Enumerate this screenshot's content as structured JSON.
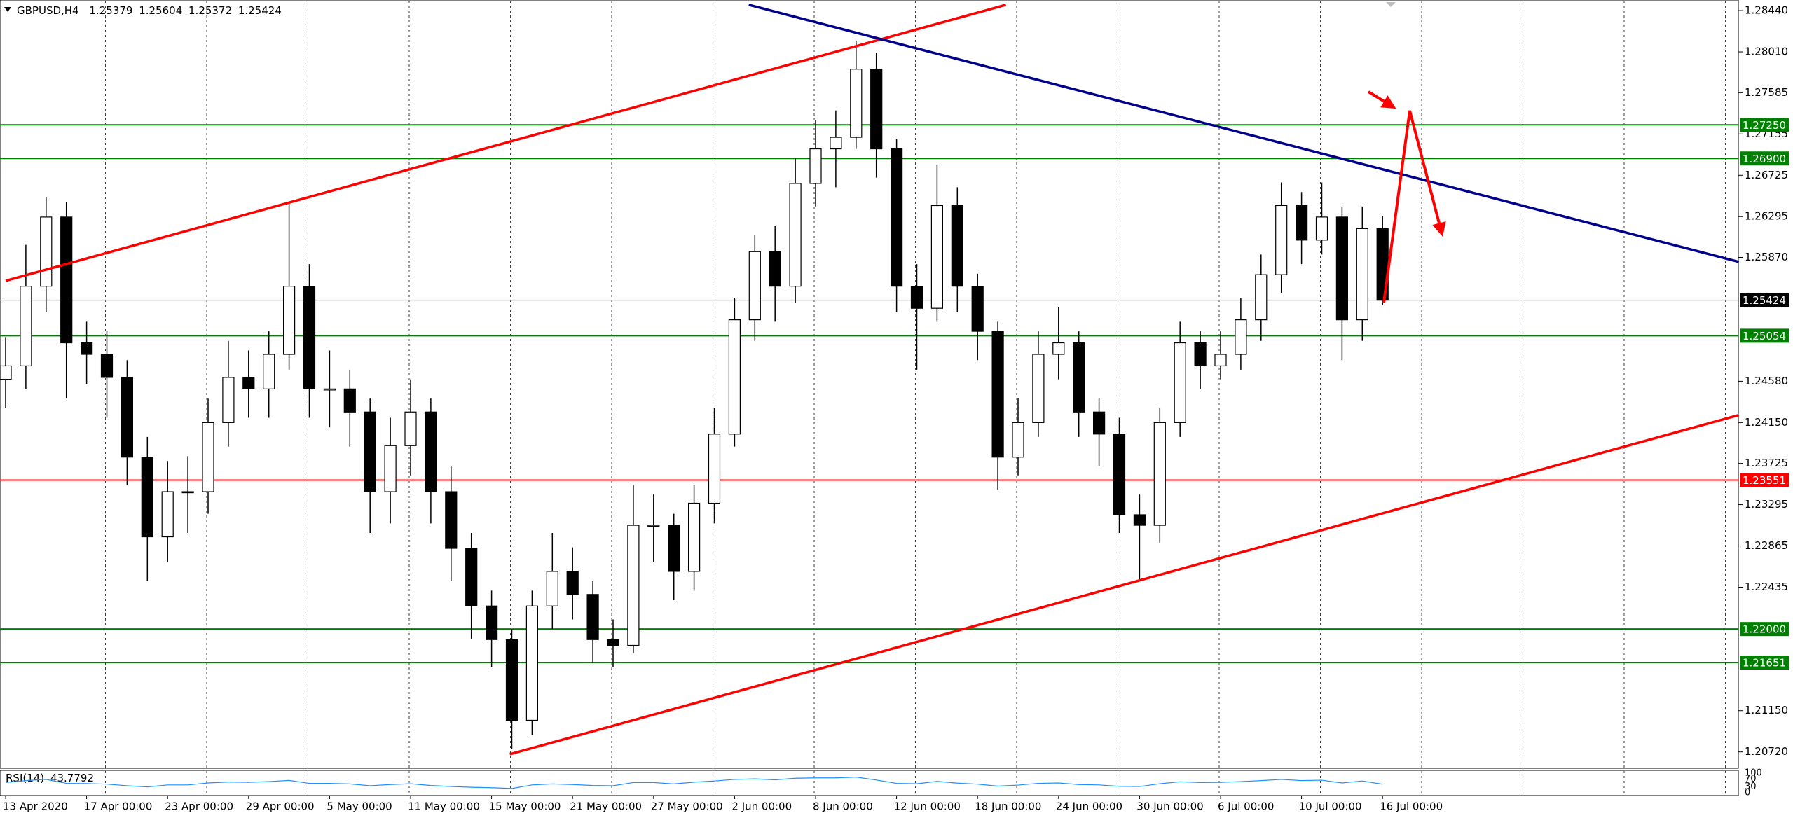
{
  "chart_data": {
    "type": "candlestick",
    "symbol": "GBPUSD,H4",
    "ohlc": [
      1.25379,
      1.25604,
      1.25372,
      1.25424
    ],
    "categories": [
      "13 Apr 2020",
      null,
      null,
      null,
      "17 Apr 00:00",
      null,
      null,
      null,
      "23 Apr 00:00",
      null,
      null,
      null,
      "29 Apr 00:00",
      null,
      null,
      null,
      "5 May 00:00",
      null,
      null,
      null,
      "11 May 00:00",
      null,
      null,
      null,
      "15 May 00:00",
      null,
      null,
      null,
      "21 May 00:00",
      null,
      null,
      null,
      "27 May 00:00",
      null,
      null,
      null,
      "2 Jun 00:00",
      null,
      null,
      null,
      "8 Jun 00:00",
      null,
      null,
      null,
      "12 Jun 00:00",
      null,
      null,
      null,
      "18 Jun 00:00",
      null,
      null,
      null,
      "24 Jun 00:00",
      null,
      null,
      null,
      "30 Jun 00:00",
      null,
      null,
      null,
      "6 Jul 00:00",
      null,
      null,
      null,
      "10 Jul 00:00",
      null,
      null,
      null,
      "16 Jul 00:00"
    ],
    "open": [
      1.246,
      1.2474,
      1.2557,
      1.2629,
      1.2498,
      1.2486,
      1.2462,
      1.2379,
      1.2296,
      1.2343,
      1.2343,
      1.2415,
      1.2462,
      1.245,
      1.2486,
      1.2557,
      1.245,
      1.245,
      1.2426,
      1.2343,
      1.2391,
      1.2426,
      1.2343,
      1.2284,
      1.2224,
      1.2189,
      1.2105,
      1.2224,
      1.226,
      1.2236,
      1.2189,
      1.2183,
      1.2308,
      1.2308,
      1.226,
      1.2331,
      1.2403,
      1.2522,
      1.2593,
      1.2557,
      1.2664,
      1.27,
      1.2712,
      1.2783,
      1.27,
      1.2557,
      1.2534,
      1.2641,
      1.2557,
      1.251,
      1.2379,
      1.2415,
      1.2486,
      1.2498,
      1.2426,
      1.2403,
      1.2319,
      1.2308,
      1.2415,
      1.2498,
      1.2474,
      1.2486,
      1.2522,
      1.2569,
      1.2641,
      1.2605,
      1.2629,
      1.2522,
      1.2617
    ],
    "high": [
      1.2504,
      1.26,
      1.265,
      1.2645,
      1.252,
      1.251,
      1.248,
      1.24,
      1.2375,
      1.238,
      1.244,
      1.25,
      1.249,
      1.251,
      1.2645,
      1.258,
      1.249,
      1.247,
      1.244,
      1.242,
      1.246,
      1.244,
      1.237,
      1.23,
      1.224,
      1.22,
      1.224,
      1.23,
      1.2285,
      1.225,
      1.221,
      1.235,
      1.234,
      1.232,
      1.235,
      1.243,
      1.2545,
      1.261,
      1.262,
      1.269,
      1.273,
      1.274,
      1.2812,
      1.28,
      1.271,
      1.258,
      1.2683,
      1.266,
      1.257,
      1.252,
      1.244,
      1.251,
      1.2535,
      1.251,
      1.244,
      1.242,
      1.234,
      1.243,
      1.252,
      1.251,
      1.251,
      1.2545,
      1.259,
      1.2665,
      1.2655,
      1.2665,
      1.264,
      1.264,
      1.263
    ],
    "low": [
      1.243,
      1.245,
      1.253,
      1.244,
      1.2455,
      1.242,
      1.235,
      1.225,
      1.227,
      1.23,
      1.232,
      1.239,
      1.242,
      1.242,
      1.247,
      1.242,
      1.241,
      1.239,
      1.23,
      1.231,
      1.236,
      1.231,
      1.225,
      1.219,
      1.216,
      1.2075,
      1.209,
      1.22,
      1.221,
      1.2165,
      1.216,
      1.2175,
      1.227,
      1.223,
      1.224,
      1.231,
      1.239,
      1.25,
      1.252,
      1.254,
      1.264,
      1.266,
      1.27,
      1.267,
      1.253,
      1.247,
      1.252,
      1.253,
      1.248,
      1.2345,
      1.236,
      1.24,
      1.246,
      1.24,
      1.237,
      1.23,
      1.225,
      1.229,
      1.24,
      1.245,
      1.246,
      1.247,
      1.25,
      1.255,
      1.258,
      1.259,
      1.248,
      1.25,
      1.25372
    ],
    "close": [
      1.2474,
      1.2557,
      1.2629,
      1.2498,
      1.2486,
      1.2462,
      1.2379,
      1.2296,
      1.2343,
      1.2343,
      1.2415,
      1.2462,
      1.245,
      1.2486,
      1.2557,
      1.245,
      1.245,
      1.2426,
      1.2343,
      1.2391,
      1.2426,
      1.2343,
      1.2284,
      1.2224,
      1.2189,
      1.2105,
      1.2224,
      1.226,
      1.2236,
      1.2189,
      1.2183,
      1.2308,
      1.2308,
      1.226,
      1.2331,
      1.2403,
      1.2522,
      1.2593,
      1.2557,
      1.2664,
      1.27,
      1.2712,
      1.2783,
      1.27,
      1.2557,
      1.2534,
      1.2641,
      1.2557,
      1.251,
      1.2379,
      1.2415,
      1.2486,
      1.2498,
      1.2426,
      1.2403,
      1.2319,
      1.2308,
      1.2415,
      1.2498,
      1.2474,
      1.2486,
      1.2522,
      1.2569,
      1.2641,
      1.2605,
      1.2629,
      1.2522,
      1.2617,
      1.25424
    ],
    "up_color": "#ffffff",
    "down_color": "#000000",
    "ylim": [
      1.2055,
      1.2855
    ],
    "yticks": [
      {
        "value": 1.2844,
        "label": "1.28440"
      },
      {
        "value": 1.2801,
        "label": "1.28010"
      },
      1.27585,
      1.27155,
      1.26725,
      1.26295,
      {
        "value": 1.2587,
        "label": "1.25870"
      },
      {
        "value": 1.2458,
        "label": "1.24580"
      },
      {
        "value": 1.2415,
        "label": "1.24150"
      },
      1.23725,
      1.23295,
      1.22865,
      1.22435,
      {
        "value": 1.2115,
        "label": "1.21150"
      },
      {
        "value": 1.2072,
        "label": "1.20720"
      }
    ],
    "current_color": "#c0c0c0",
    "levels": [
      {
        "value": 1.2725,
        "label": "1.27250",
        "color": "#008000"
      },
      {
        "value": 1.269,
        "label": "1.26900",
        "color": "#008000"
      },
      {
        "value": 1.25054,
        "color": "#008000"
      },
      {
        "value": 1.23551,
        "color": "#ff0000"
      },
      {
        "value": 1.22,
        "label": "1.22000",
        "color": "#008000"
      },
      {
        "value": 1.21651,
        "color": "#008000"
      }
    ],
    "trendlines": [
      {
        "color": "#ff0000",
        "points": [
          [
            0,
            1.25626
          ],
          [
            49.4,
            1.285
          ]
        ]
      },
      {
        "color": "#00008b",
        "points": [
          [
            36.7,
            1.285
          ],
          [
            85.6,
            1.25823
          ]
        ]
      },
      {
        "color": "#ff0000",
        "points": [
          [
            24.9,
            1.20696
          ],
          [
            85.6,
            1.24229
          ]
        ]
      }
    ],
    "indicator": {
      "name": "RSI(14)",
      "value": 43.7792,
      "color": "#1e90ff",
      "ylim": [
        0,
        100
      ],
      "yticks": [
        100,
        70,
        30,
        0
      ],
      "values": [
        52,
        62,
        68,
        48,
        47,
        44,
        36,
        30,
        40,
        40,
        50,
        55,
        53,
        57,
        63,
        48,
        48,
        45,
        36,
        42,
        46,
        37,
        32,
        28,
        26,
        22,
        40,
        45,
        42,
        37,
        36,
        52,
        52,
        45,
        54,
        60,
        68,
        71,
        66,
        74,
        76,
        76,
        80,
        65,
        48,
        46,
        58,
        49,
        44,
        34,
        39,
        48,
        50,
        42,
        40,
        33,
        32,
        46,
        56,
        52,
        53,
        57,
        62,
        68,
        62,
        64,
        50,
        60,
        43.7792
      ]
    }
  }
}
